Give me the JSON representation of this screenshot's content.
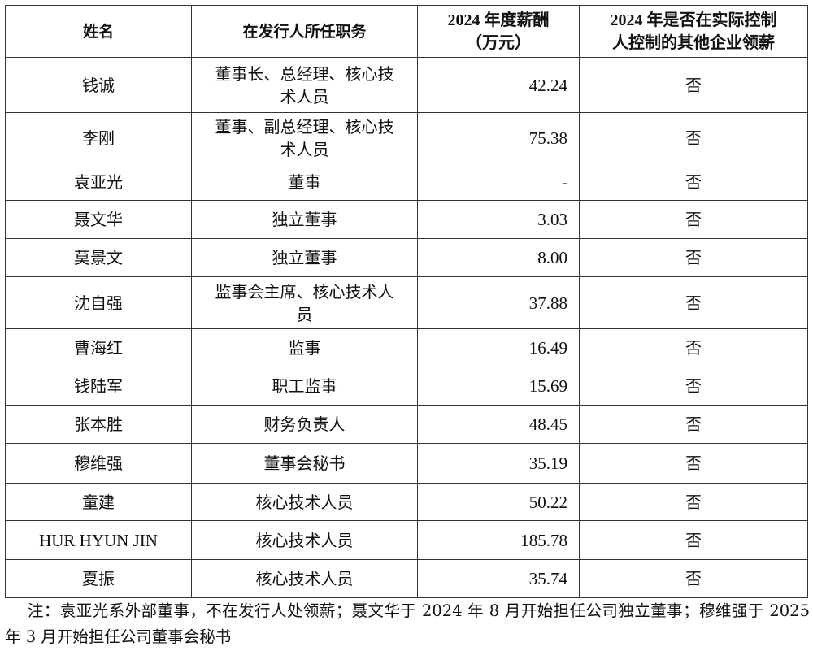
{
  "table": {
    "headers": [
      "姓名",
      "在发行人所任职务",
      "2024 年度薪酬（万元）",
      "2024 年是否在实际控制人控制的其他企业领薪"
    ],
    "header_lines": {
      "salary": [
        "2024 年度薪酬",
        "（万元）"
      ],
      "other": [
        "2024 年是否在实际控制",
        "人控制的其他企业领薪"
      ]
    },
    "rows": [
      {
        "name": "钱诚",
        "position": "董事长、总经理、核心技术人员",
        "salary": "42.24",
        "other_pay": "否"
      },
      {
        "name": "李刚",
        "position": "董事、副总经理、核心技术人员",
        "salary": "75.38",
        "other_pay": "否"
      },
      {
        "name": "袁亚光",
        "position": "董事",
        "salary": "-",
        "other_pay": "否"
      },
      {
        "name": "聂文华",
        "position": "独立董事",
        "salary": "3.03",
        "other_pay": "否"
      },
      {
        "name": "莫景文",
        "position": "独立董事",
        "salary": "8.00",
        "other_pay": "否"
      },
      {
        "name": "沈自强",
        "position": "监事会主席、核心技术人员",
        "salary": "37.88",
        "other_pay": "否"
      },
      {
        "name": "曹海红",
        "position": "监事",
        "salary": "16.49",
        "other_pay": "否"
      },
      {
        "name": "钱陆军",
        "position": "职工监事",
        "salary": "15.69",
        "other_pay": "否"
      },
      {
        "name": "张本胜",
        "position": "财务负责人",
        "salary": "48.45",
        "other_pay": "否"
      },
      {
        "name": "穆维强",
        "position": "董事会秘书",
        "salary": "35.19",
        "other_pay": "否"
      },
      {
        "name": "童建",
        "position": "核心技术人员",
        "salary": "50.22",
        "other_pay": "否"
      },
      {
        "name": "HUR HYUN JIN",
        "position": "核心技术人员",
        "salary": "185.78",
        "other_pay": "否"
      },
      {
        "name": "夏振",
        "position": "核心技术人员",
        "salary": "35.74",
        "other_pay": "否"
      }
    ]
  },
  "note": "注：袁亚光系外部董事，不在发行人处领薪；聂文华于 2024 年 8 月开始担任公司独立董事；穆维强于 2025 年 3 月开始担任公司董事会秘书"
}
